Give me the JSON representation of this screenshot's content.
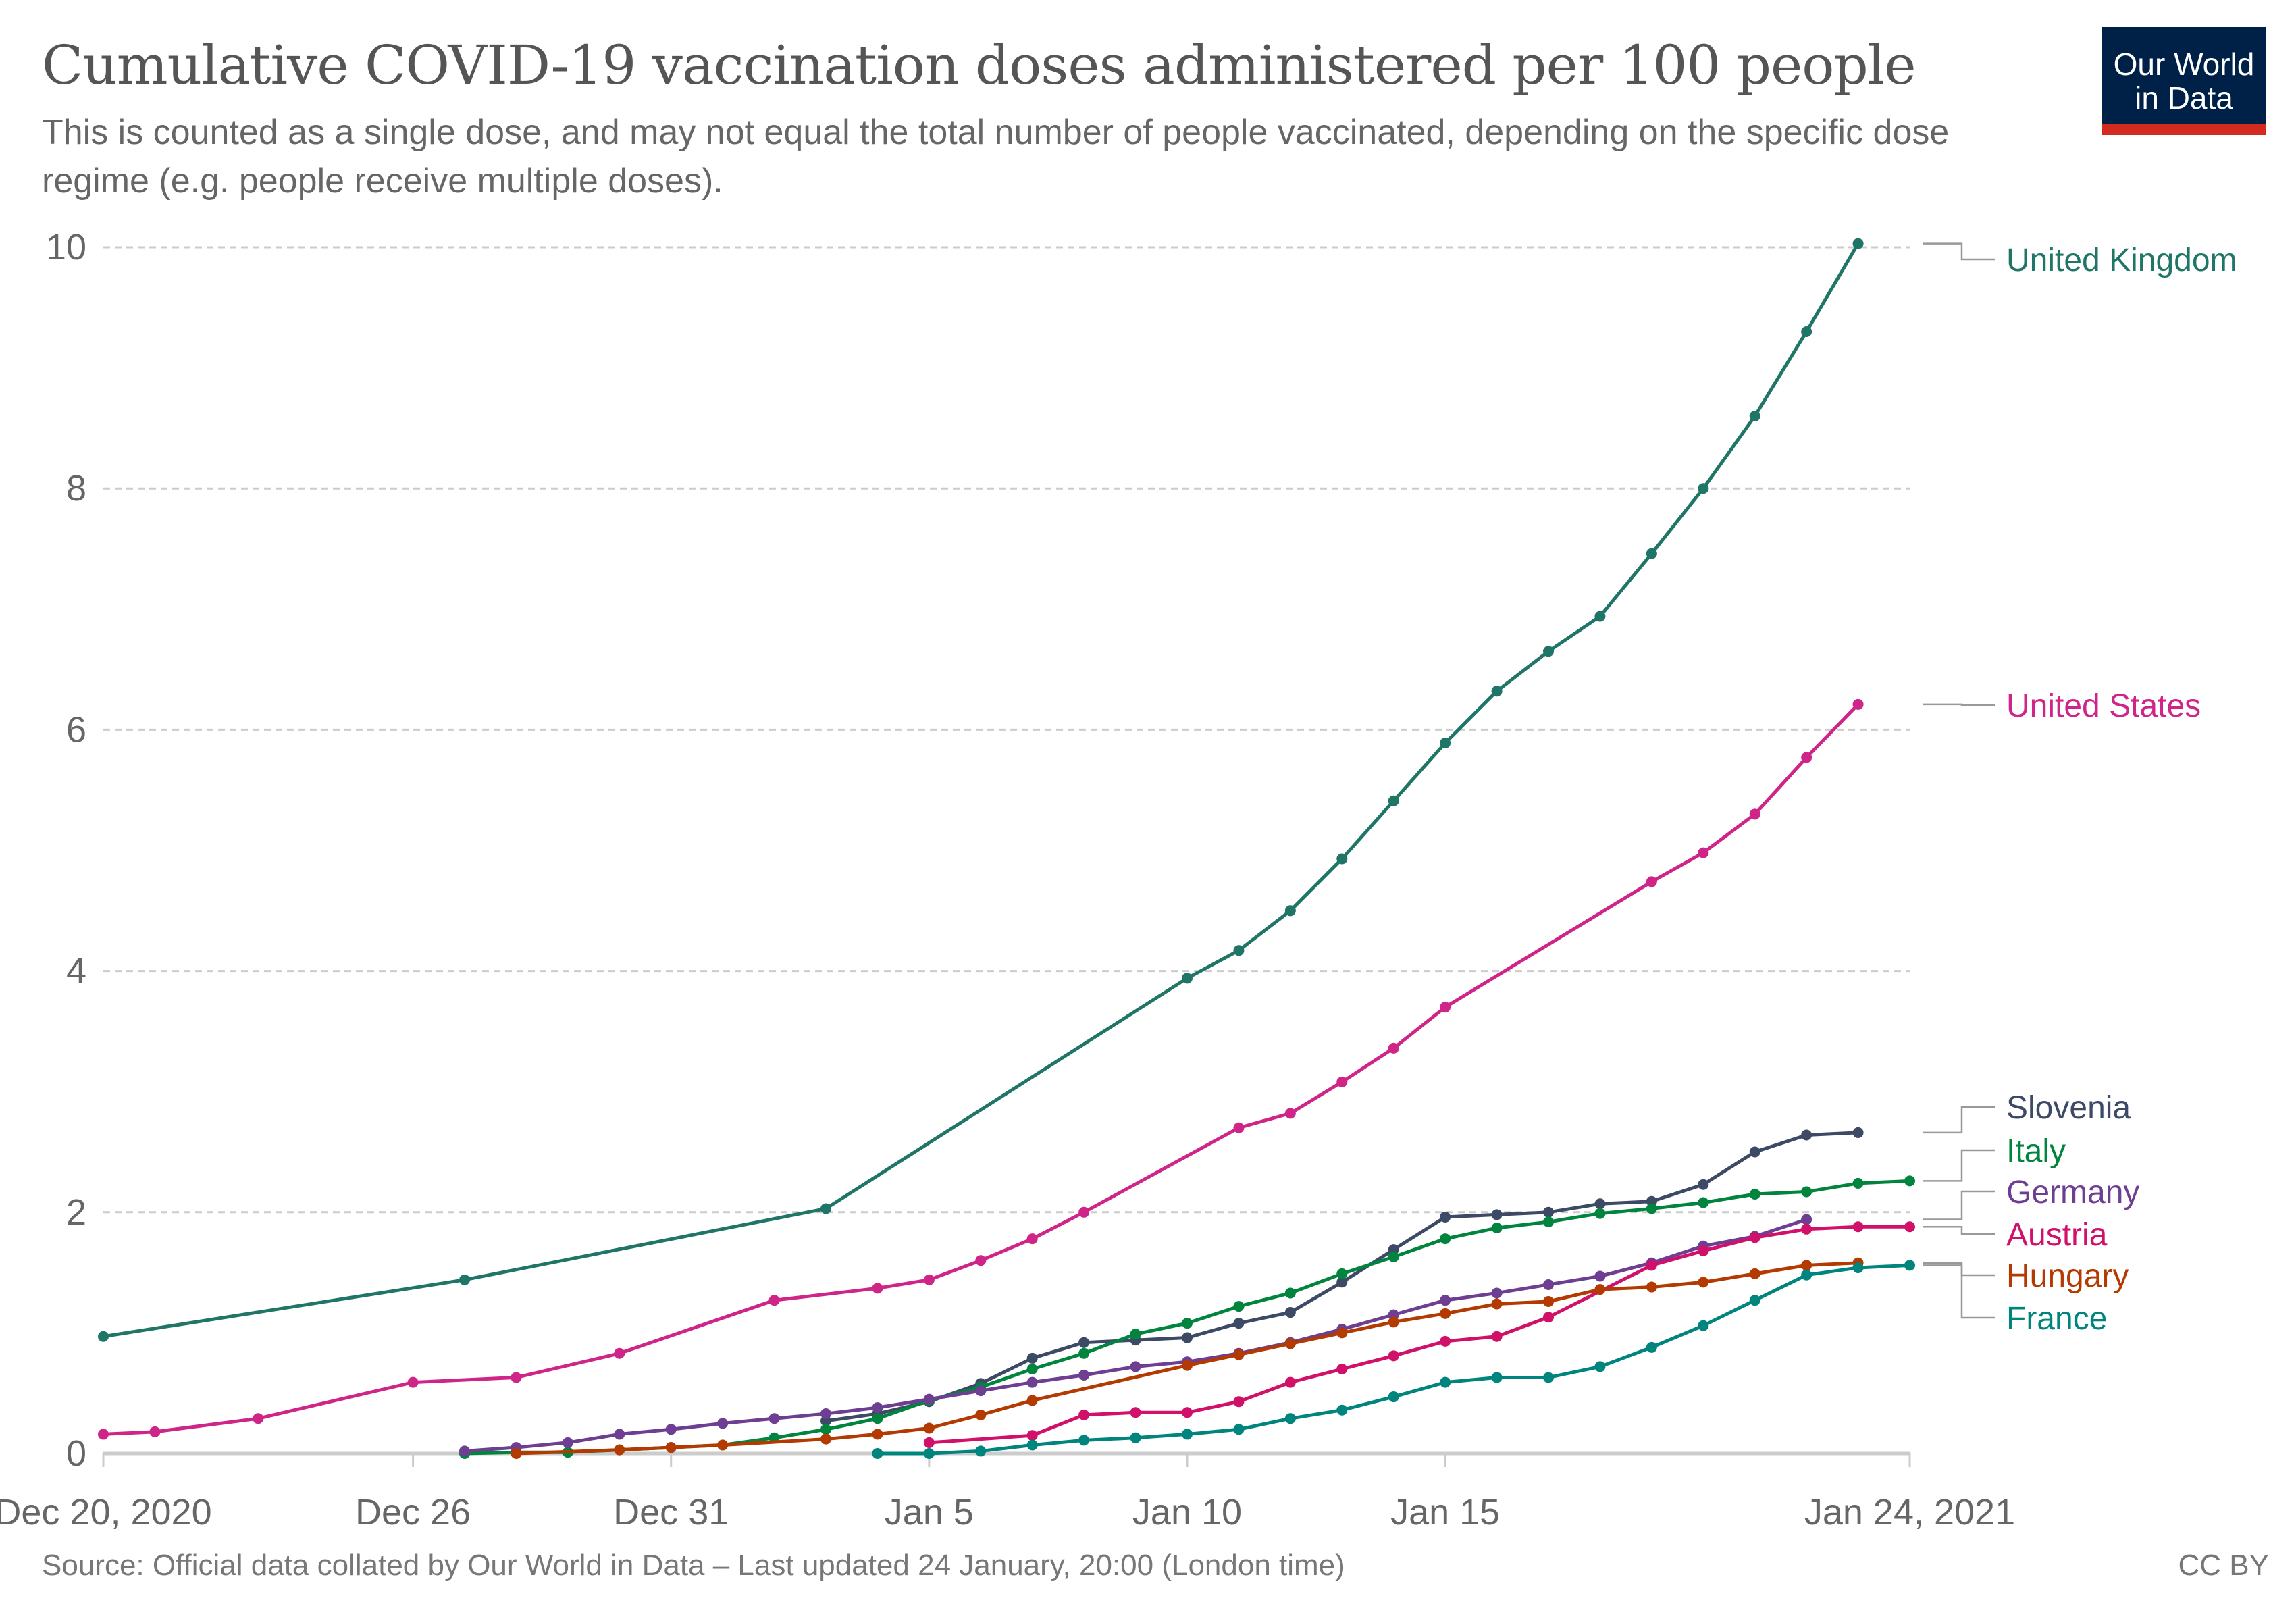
{
  "header": {
    "title": "Cumulative COVID-19 vaccination doses administered per 100 people",
    "subtitle": "This is counted as a single dose, and may not equal the total number of people vaccinated, depending on the specific dose regime (e.g. people receive multiple doses).",
    "logo": "Our World in Data"
  },
  "footer": {
    "source": "Source: Official data collated by Our World in Data – Last updated 24 January, 20:00 (London time)",
    "license": "CC BY"
  },
  "chart_data": {
    "type": "line",
    "title": "Cumulative COVID-19 vaccination doses administered per 100 people",
    "xlabel": "",
    "ylabel": "",
    "xlim": [
      "2020-12-20",
      "2021-01-24"
    ],
    "ylim": [
      0,
      10
    ],
    "grid": "horizontal dashed",
    "legend": "right (end-of-line labels)",
    "x_ticks": [
      {
        "date": "2020-12-20",
        "label": "Dec 20, 2020"
      },
      {
        "date": "2020-12-26",
        "label": "Dec 26"
      },
      {
        "date": "2020-12-31",
        "label": "Dec 31"
      },
      {
        "date": "2021-01-05",
        "label": "Jan 5"
      },
      {
        "date": "2021-01-10",
        "label": "Jan 10"
      },
      {
        "date": "2021-01-15",
        "label": "Jan 15"
      },
      {
        "date": "2021-01-24",
        "label": "Jan 24, 2021"
      }
    ],
    "y_ticks": [
      0,
      2,
      4,
      6,
      8,
      10
    ],
    "series": [
      {
        "name": "United Kingdom",
        "color": "#1f7566",
        "points": [
          [
            "2020-12-20",
            0.97
          ],
          [
            "2020-12-27",
            1.44
          ],
          [
            "2021-01-03",
            2.03
          ],
          [
            "2021-01-10",
            3.94
          ],
          [
            "2021-01-11",
            4.17
          ],
          [
            "2021-01-12",
            4.5
          ],
          [
            "2021-01-13",
            4.93
          ],
          [
            "2021-01-14",
            5.41
          ],
          [
            "2021-01-15",
            5.89
          ],
          [
            "2021-01-16",
            6.32
          ],
          [
            "2021-01-17",
            6.65
          ],
          [
            "2021-01-18",
            6.94
          ],
          [
            "2021-01-19",
            7.46
          ],
          [
            "2021-01-20",
            8.0
          ],
          [
            "2021-01-21",
            8.6
          ],
          [
            "2021-01-22",
            9.3
          ],
          [
            "2021-01-23",
            10.03
          ]
        ]
      },
      {
        "name": "United States",
        "color": "#cf2589",
        "points": [
          [
            "2020-12-20",
            0.16
          ],
          [
            "2020-12-21",
            0.18
          ],
          [
            "2020-12-23",
            0.29
          ],
          [
            "2020-12-26",
            0.59
          ],
          [
            "2020-12-28",
            0.63
          ],
          [
            "2020-12-30",
            0.83
          ],
          [
            "2021-01-02",
            1.27
          ],
          [
            "2021-01-04",
            1.37
          ],
          [
            "2021-01-05",
            1.44
          ],
          [
            "2021-01-06",
            1.6
          ],
          [
            "2021-01-07",
            1.78
          ],
          [
            "2021-01-08",
            2.0
          ],
          [
            "2021-01-11",
            2.7
          ],
          [
            "2021-01-12",
            2.82
          ],
          [
            "2021-01-13",
            3.08
          ],
          [
            "2021-01-14",
            3.36
          ],
          [
            "2021-01-15",
            3.7
          ],
          [
            "2021-01-19",
            4.74
          ],
          [
            "2021-01-20",
            4.98
          ],
          [
            "2021-01-21",
            5.3
          ],
          [
            "2021-01-22",
            5.77
          ],
          [
            "2021-01-23",
            6.21
          ]
        ]
      },
      {
        "name": "Slovenia",
        "color": "#3c4a66",
        "points": [
          [
            "2021-01-03",
            0.27
          ],
          [
            "2021-01-04",
            0.33
          ],
          [
            "2021-01-05",
            0.43
          ],
          [
            "2021-01-06",
            0.58
          ],
          [
            "2021-01-07",
            0.79
          ],
          [
            "2021-01-08",
            0.92
          ],
          [
            "2021-01-09",
            0.94
          ],
          [
            "2021-01-10",
            0.96
          ],
          [
            "2021-01-11",
            1.08
          ],
          [
            "2021-01-12",
            1.17
          ],
          [
            "2021-01-13",
            1.42
          ],
          [
            "2021-01-14",
            1.69
          ],
          [
            "2021-01-15",
            1.96
          ],
          [
            "2021-01-16",
            1.98
          ],
          [
            "2021-01-17",
            2.0
          ],
          [
            "2021-01-18",
            2.07
          ],
          [
            "2021-01-19",
            2.09
          ],
          [
            "2021-01-20",
            2.23
          ],
          [
            "2021-01-21",
            2.5
          ],
          [
            "2021-01-22",
            2.64
          ],
          [
            "2021-01-23",
            2.66
          ]
        ]
      },
      {
        "name": "Italy",
        "color": "#00843e",
        "points": [
          [
            "2020-12-27",
            0.0
          ],
          [
            "2020-12-28",
            0.01
          ],
          [
            "2020-12-29",
            0.01
          ],
          [
            "2020-12-30",
            0.03
          ],
          [
            "2020-12-31",
            0.05
          ],
          [
            "2021-01-01",
            0.07
          ],
          [
            "2021-01-02",
            0.13
          ],
          [
            "2021-01-03",
            0.2
          ],
          [
            "2021-01-04",
            0.29
          ],
          [
            "2021-01-05",
            0.44
          ],
          [
            "2021-01-06",
            0.55
          ],
          [
            "2021-01-07",
            0.7
          ],
          [
            "2021-01-08",
            0.83
          ],
          [
            "2021-01-09",
            0.99
          ],
          [
            "2021-01-10",
            1.08
          ],
          [
            "2021-01-11",
            1.22
          ],
          [
            "2021-01-12",
            1.33
          ],
          [
            "2021-01-13",
            1.49
          ],
          [
            "2021-01-14",
            1.63
          ],
          [
            "2021-01-15",
            1.78
          ],
          [
            "2021-01-16",
            1.87
          ],
          [
            "2021-01-17",
            1.92
          ],
          [
            "2021-01-18",
            1.99
          ],
          [
            "2021-01-19",
            2.03
          ],
          [
            "2021-01-20",
            2.08
          ],
          [
            "2021-01-21",
            2.15
          ],
          [
            "2021-01-22",
            2.17
          ],
          [
            "2021-01-23",
            2.24
          ],
          [
            "2021-01-24",
            2.26
          ]
        ]
      },
      {
        "name": "Germany",
        "color": "#6d3e91",
        "points": [
          [
            "2020-12-27",
            0.02
          ],
          [
            "2020-12-28",
            0.05
          ],
          [
            "2020-12-29",
            0.09
          ],
          [
            "2020-12-30",
            0.16
          ],
          [
            "2020-12-31",
            0.2
          ],
          [
            "2021-01-01",
            0.25
          ],
          [
            "2021-01-02",
            0.29
          ],
          [
            "2021-01-03",
            0.33
          ],
          [
            "2021-01-04",
            0.38
          ],
          [
            "2021-01-05",
            0.45
          ],
          [
            "2021-01-06",
            0.52
          ],
          [
            "2021-01-07",
            0.59
          ],
          [
            "2021-01-08",
            0.65
          ],
          [
            "2021-01-09",
            0.72
          ],
          [
            "2021-01-10",
            0.76
          ],
          [
            "2021-01-11",
            0.83
          ],
          [
            "2021-01-12",
            0.92
          ],
          [
            "2021-01-13",
            1.03
          ],
          [
            "2021-01-14",
            1.15
          ],
          [
            "2021-01-15",
            1.27
          ],
          [
            "2021-01-16",
            1.33
          ],
          [
            "2021-01-17",
            1.4
          ],
          [
            "2021-01-18",
            1.47
          ],
          [
            "2021-01-19",
            1.58
          ],
          [
            "2021-01-20",
            1.72
          ],
          [
            "2021-01-21",
            1.8
          ],
          [
            "2021-01-22",
            1.94
          ]
        ]
      },
      {
        "name": "Austria",
        "color": "#d1106a",
        "points": [
          [
            "2021-01-05",
            0.09
          ],
          [
            "2021-01-07",
            0.15
          ],
          [
            "2021-01-08",
            0.32
          ],
          [
            "2021-01-09",
            0.34
          ],
          [
            "2021-01-10",
            0.34
          ],
          [
            "2021-01-11",
            0.43
          ],
          [
            "2021-01-12",
            0.59
          ],
          [
            "2021-01-13",
            0.7
          ],
          [
            "2021-01-14",
            0.81
          ],
          [
            "2021-01-15",
            0.93
          ],
          [
            "2021-01-16",
            0.97
          ],
          [
            "2021-01-17",
            1.13
          ],
          [
            "2021-01-19",
            1.56
          ],
          [
            "2021-01-20",
            1.68
          ],
          [
            "2021-01-21",
            1.79
          ],
          [
            "2021-01-22",
            1.86
          ],
          [
            "2021-01-23",
            1.88
          ],
          [
            "2021-01-24",
            1.88
          ]
        ]
      },
      {
        "name": "Hungary",
        "color": "#b33a00",
        "points": [
          [
            "2020-12-28",
            0.0
          ],
          [
            "2020-12-30",
            0.03
          ],
          [
            "2020-12-31",
            0.05
          ],
          [
            "2021-01-01",
            0.07
          ],
          [
            "2021-01-03",
            0.12
          ],
          [
            "2021-01-04",
            0.16
          ],
          [
            "2021-01-05",
            0.21
          ],
          [
            "2021-01-06",
            0.32
          ],
          [
            "2021-01-07",
            0.44
          ],
          [
            "2021-01-10",
            0.73
          ],
          [
            "2021-01-11",
            0.82
          ],
          [
            "2021-01-12",
            0.91
          ],
          [
            "2021-01-13",
            1.0
          ],
          [
            "2021-01-14",
            1.09
          ],
          [
            "2021-01-15",
            1.16
          ],
          [
            "2021-01-16",
            1.24
          ],
          [
            "2021-01-17",
            1.26
          ],
          [
            "2021-01-18",
            1.36
          ],
          [
            "2021-01-19",
            1.38
          ],
          [
            "2021-01-20",
            1.42
          ],
          [
            "2021-01-21",
            1.49
          ],
          [
            "2021-01-22",
            1.56
          ],
          [
            "2021-01-23",
            1.58
          ]
        ]
      },
      {
        "name": "France",
        "color": "#00847e",
        "points": [
          [
            "2021-01-04",
            0.0
          ],
          [
            "2021-01-05",
            0.0
          ],
          [
            "2021-01-06",
            0.02
          ],
          [
            "2021-01-07",
            0.07
          ],
          [
            "2021-01-08",
            0.11
          ],
          [
            "2021-01-09",
            0.13
          ],
          [
            "2021-01-10",
            0.16
          ],
          [
            "2021-01-11",
            0.2
          ],
          [
            "2021-01-12",
            0.29
          ],
          [
            "2021-01-13",
            0.36
          ],
          [
            "2021-01-14",
            0.47
          ],
          [
            "2021-01-15",
            0.59
          ],
          [
            "2021-01-16",
            0.63
          ],
          [
            "2021-01-17",
            0.63
          ],
          [
            "2021-01-18",
            0.72
          ],
          [
            "2021-01-19",
            0.88
          ],
          [
            "2021-01-20",
            1.06
          ],
          [
            "2021-01-21",
            1.27
          ],
          [
            "2021-01-22",
            1.48
          ],
          [
            "2021-01-23",
            1.54
          ],
          [
            "2021-01-24",
            1.56
          ]
        ]
      }
    ]
  }
}
